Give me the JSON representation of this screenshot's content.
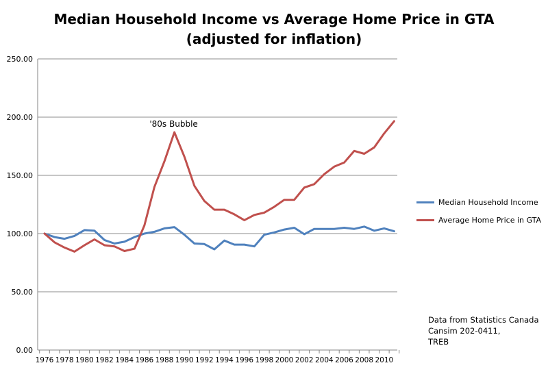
{
  "chart_data": {
    "type": "line",
    "title_lines": [
      "Median Household Income vs Average Home Price in GTA",
      "(adjusted for inflation)"
    ],
    "xlabel": "",
    "ylabel": "",
    "ylim": [
      0,
      250
    ],
    "y_ticks": [
      "0.00",
      "50.00",
      "100.00",
      "150.00",
      "200.00",
      "250.00"
    ],
    "y_tick_values": [
      0,
      50,
      100,
      150,
      200,
      250
    ],
    "x": [
      1976,
      1977,
      1978,
      1979,
      1980,
      1981,
      1982,
      1983,
      1984,
      1985,
      1986,
      1987,
      1988,
      1989,
      1990,
      1991,
      1992,
      1993,
      1994,
      1995,
      1996,
      1997,
      1998,
      1999,
      2000,
      2001,
      2002,
      2003,
      2004,
      2005,
      2006,
      2007,
      2008,
      2009,
      2010,
      2011
    ],
    "x_tick_labels": [
      "1976",
      "1978",
      "1980",
      "1982",
      "1984",
      "1986",
      "1988",
      "1990",
      "1992",
      "1994",
      "1996",
      "1998",
      "2000",
      "2002",
      "2004",
      "2006",
      "2008",
      "2010"
    ],
    "grid": "horizontal",
    "legend_position": "right",
    "series": [
      {
        "name": "Median Household Income",
        "color": "#4F81BD",
        "values": [
          100,
          97,
          95.5,
          98,
          103,
          102.5,
          94.5,
          91.5,
          93,
          97,
          100,
          101.5,
          104.5,
          105.5,
          99,
          91.5,
          91,
          86.5,
          94,
          90.5,
          90.5,
          89,
          99,
          101,
          103.5,
          105,
          99.5,
          104,
          104,
          104,
          105,
          104,
          106,
          102.5,
          104.5,
          102
        ]
      },
      {
        "name": "Average Home Price in GTA",
        "color": "#C0504D",
        "values": [
          100,
          92.5,
          88,
          84.5,
          90,
          95,
          90,
          89,
          85,
          87,
          107,
          140,
          162,
          187,
          166,
          141,
          128,
          120.5,
          120.5,
          116.5,
          111.5,
          116,
          118,
          123,
          129,
          129,
          139.5,
          142.5,
          151,
          157.5,
          161,
          171,
          168.5,
          174,
          186,
          196.5
        ]
      }
    ],
    "annotations": [
      {
        "text": "'80s Bubble",
        "x": 1989,
        "y": 187
      }
    ],
    "source_note": [
      "Data from Statistics Canada",
      "Cansim  202-0411,",
      "TREB"
    ]
  }
}
